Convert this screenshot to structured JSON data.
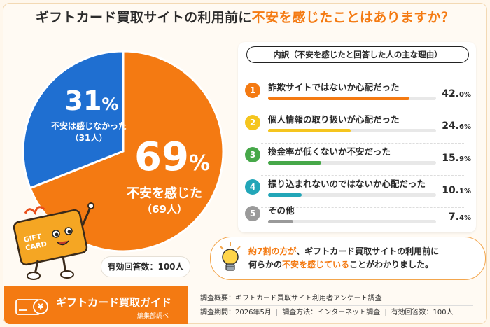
{
  "title": {
    "part1": "ギフトカード買取サイトの利用前に",
    "highlight": "不安を感じたことはありますか？"
  },
  "chart_data": {
    "type": "pie",
    "slices": [
      {
        "label": "不安を感じた",
        "value": 69,
        "count": "（69人）",
        "color": "#f47a12"
      },
      {
        "label": "不安は感じなかった",
        "value": 31,
        "count": "（31人）",
        "color": "#1f6fd1"
      }
    ]
  },
  "pie_labels": {
    "org_num": "69",
    "org_pct": "%",
    "org_label": "不安を感じた",
    "org_count": "（69人）",
    "blue_num": "31",
    "blue_pct": "%",
    "blue_label": "不安は感じなかった",
    "blue_count": "（31人）"
  },
  "valid_responses": "有効回答数：100人",
  "breakdown": {
    "header": "内訳（不安を感じたと回答した人の主な理由）",
    "reasons": [
      {
        "rank": "1",
        "label": "詐欺サイトではないか心配だった",
        "int": "42.",
        "dec": "0%",
        "value": 42.0,
        "color": "#f47a12"
      },
      {
        "rank": "2",
        "label": "個人情報の取り扱いが心配だった",
        "int": "24.",
        "dec": "6%",
        "value": 24.6,
        "color": "#f5c51e"
      },
      {
        "rank": "3",
        "label": "換金率が低くないか不安だった",
        "int": "15.",
        "dec": "9%",
        "value": 15.9,
        "color": "#46a849"
      },
      {
        "rank": "4",
        "label": "振り込まれないのではないか心配だった",
        "int": "10.",
        "dec": "1%",
        "value": 10.1,
        "color": "#22a6b8"
      },
      {
        "rank": "5",
        "label": "その他",
        "int": "7.",
        "dec": "4%",
        "value": 7.4,
        "color": "#9a9a9a"
      }
    ]
  },
  "summary": {
    "a": "約7割の方が",
    "b": "、ギフトカード買取サイトの利用前に",
    "c": "何らかの",
    "d": "不安を感じている",
    "e": "ことがわかりました。"
  },
  "footer": {
    "brand": "ギフトカード買取ガイド",
    "brand_sub": "編集部調べ",
    "line1": "調査概要：ギフトカード買取サイト利用者アンケート調査",
    "period": "調査期間：2026年5月",
    "method": "調査方法：インターネット調査",
    "valid": "有効回答数：100人",
    "sep": "|"
  },
  "mascot": {
    "card_line1": "GIFT",
    "card_line2": "CARD",
    "icon_symbol": "¥"
  }
}
